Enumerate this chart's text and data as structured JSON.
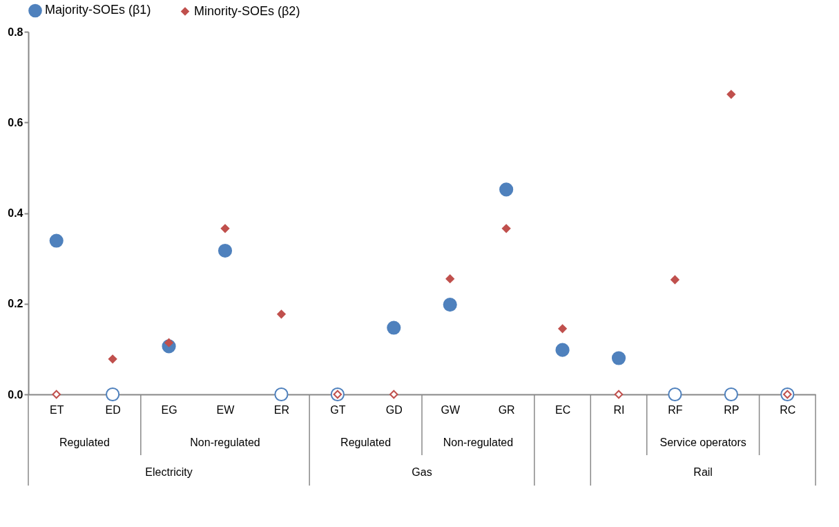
{
  "chart_data": {
    "type": "scatter",
    "categories": [
      "ET",
      "ED",
      "EG",
      "EW",
      "ER",
      "GT",
      "GD",
      "GW",
      "GR",
      "EC",
      "RI",
      "RF",
      "RP",
      "RC"
    ],
    "series": [
      {
        "name": "Majority-SOEs (β1)",
        "color": "#4f81bd",
        "marker": "circle",
        "values": [
          0.339,
          0,
          0.106,
          0.317,
          0,
          0,
          0.147,
          0.198,
          0.452,
          0.098,
          0.08,
          0,
          0,
          0
        ]
      },
      {
        "name": "Minority-SOEs (β2)",
        "color": "#c0504d",
        "marker": "diamond",
        "values": [
          0,
          0.078,
          0.114,
          0.366,
          0.177,
          0,
          0,
          0.255,
          0.366,
          0.145,
          0,
          0.253,
          0.662,
          0
        ]
      }
    ],
    "ylim": [
      0,
      0.8
    ],
    "yticks": [
      {
        "value": 0,
        "label": "0.0"
      },
      {
        "value": 0.2,
        "label": "0.2"
      },
      {
        "value": 0.4,
        "label": "0.4"
      },
      {
        "value": 0.6,
        "label": "0.6"
      },
      {
        "value": 0.8,
        "label": "0.8"
      }
    ],
    "grid": false,
    "legend": "top",
    "annotations": [
      "Regulated",
      "Non-regulated",
      "Regulated",
      "Non-regulated",
      "Service operators",
      "Electricity",
      "Gas",
      "Rail"
    ]
  }
}
